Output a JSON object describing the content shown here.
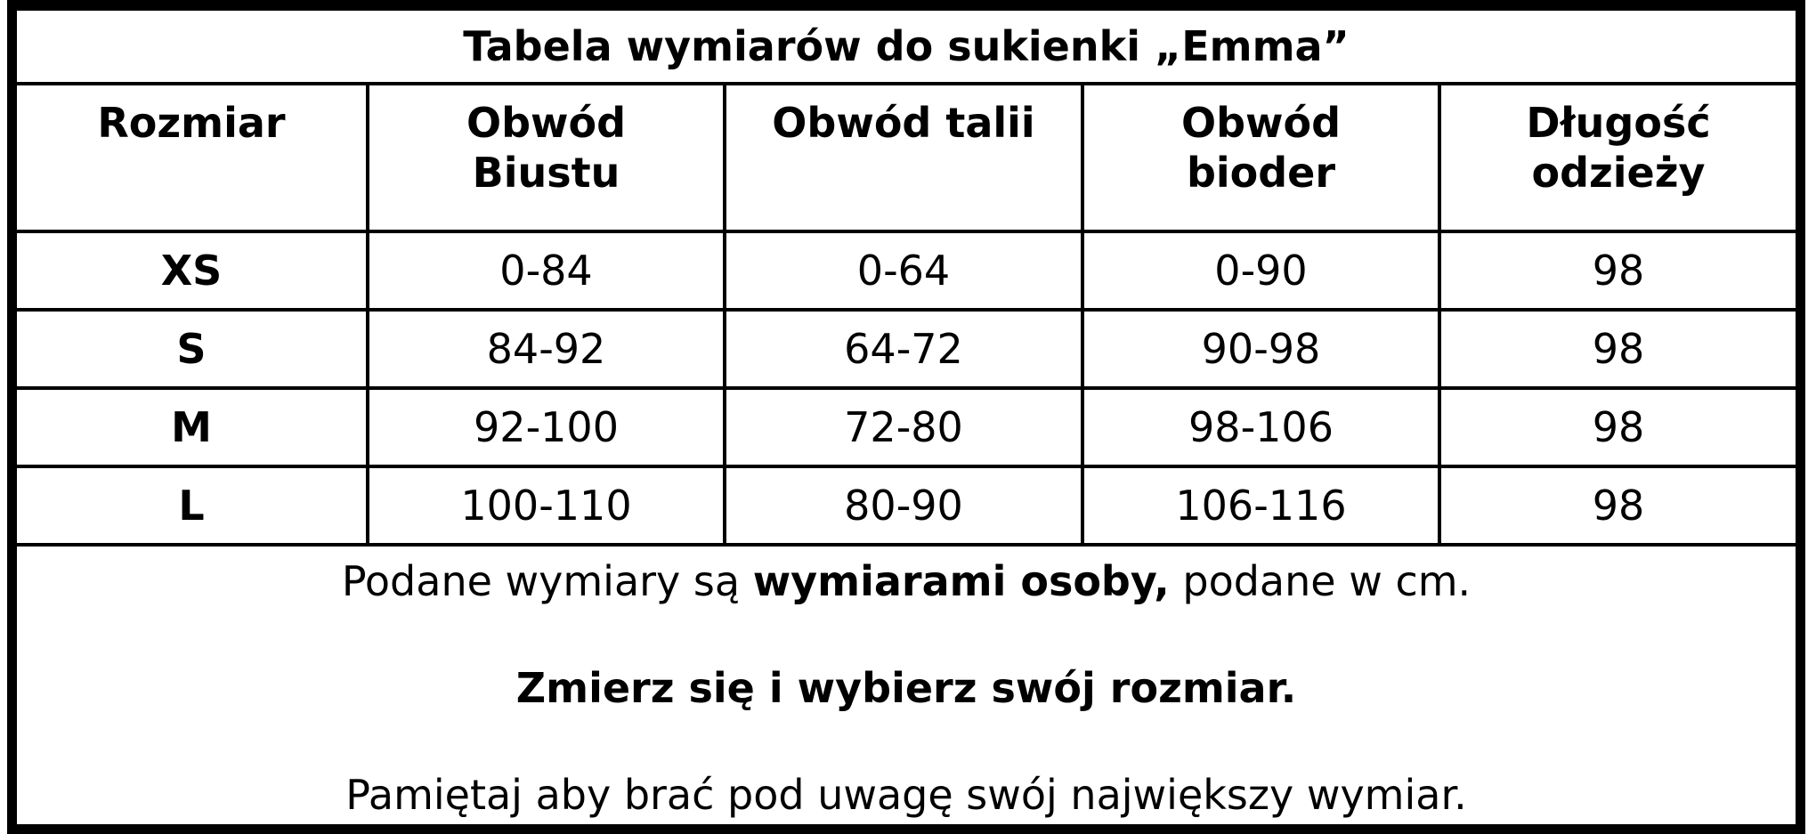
{
  "title": "Tabela wymiarów do sukienki „Emma”",
  "headers": [
    [
      "Rozmiar"
    ],
    [
      "Obwód",
      "Biustu"
    ],
    [
      "Obwód talii"
    ],
    [
      "Obwód",
      "bioder"
    ],
    [
      "Długość",
      "odzieży"
    ]
  ],
  "rows": [
    [
      "XS",
      "0-84",
      "0-64",
      "0-90",
      "98"
    ],
    [
      "S",
      "84-92",
      "64-72",
      "90-98",
      "98"
    ],
    [
      "M",
      "92-100",
      "72-80",
      "98-106",
      "98"
    ],
    [
      "L",
      "100-110",
      "80-90",
      "106-116",
      "98"
    ]
  ],
  "footer": {
    "line1_a": "Podane wymiary są ",
    "line1_bold": "wymiarami osoby,",
    "line1_b": " podane w cm.",
    "line2": "Zmierz się i wybierz swój rozmiar.",
    "line3": "Pamiętaj aby brać pod uwagę swój największy wymiar."
  }
}
